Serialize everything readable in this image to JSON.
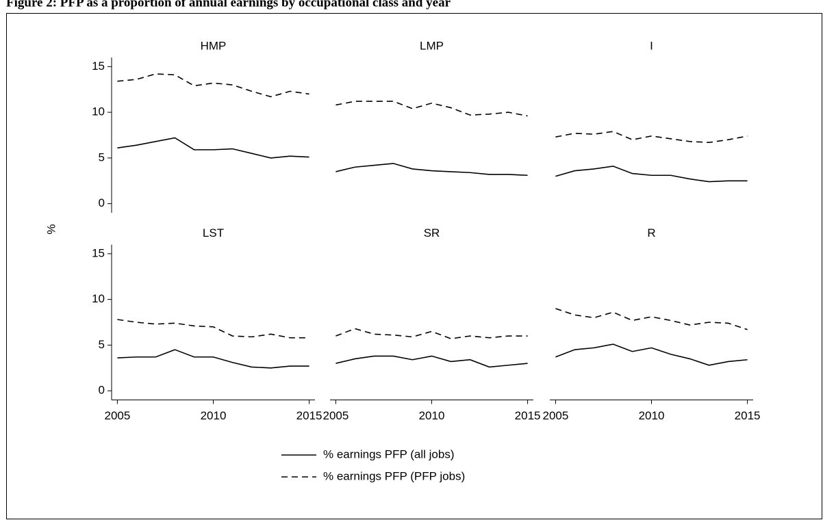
{
  "chart_data": {
    "type": "line",
    "title": "Figure 2: PFP as a proportion of annual earnings by occupational class and year",
    "ylabel": "%",
    "x": [
      2005,
      2006,
      2007,
      2008,
      2009,
      2010,
      2011,
      2012,
      2013,
      2014,
      2015
    ],
    "xlim": [
      2004.7,
      2015.3
    ],
    "xticks": [
      2005,
      2010,
      2015
    ],
    "ylim": [
      -1,
      16
    ],
    "yticks": [
      0,
      5,
      10,
      15
    ],
    "series": [
      {
        "name": "% earnings PFP (all jobs)",
        "color": "#000000",
        "style": "solid"
      },
      {
        "name": "% earnings PFP (PFP jobs)",
        "color": "#000000",
        "style": "dashed"
      }
    ],
    "panels": [
      {
        "title": "HMP",
        "series": [
          {
            "values": [
              6.1,
              6.4,
              6.8,
              7.2,
              5.9,
              5.9,
              6.0,
              5.5,
              5.0,
              5.2,
              5.1
            ]
          },
          {
            "values": [
              13.4,
              13.6,
              14.2,
              14.1,
              12.9,
              13.2,
              13.0,
              12.3,
              11.7,
              12.3,
              12.0
            ]
          }
        ]
      },
      {
        "title": "LMP",
        "series": [
          {
            "values": [
              3.5,
              4.0,
              4.2,
              4.4,
              3.8,
              3.6,
              3.5,
              3.4,
              3.2,
              3.2,
              3.1
            ]
          },
          {
            "values": [
              10.8,
              11.2,
              11.2,
              11.2,
              10.4,
              11.0,
              10.5,
              9.7,
              9.8,
              10.0,
              9.6
            ]
          }
        ]
      },
      {
        "title": "I",
        "series": [
          {
            "values": [
              3.0,
              3.6,
              3.8,
              4.1,
              3.3,
              3.1,
              3.1,
              2.7,
              2.4,
              2.5,
              2.5
            ]
          },
          {
            "values": [
              7.3,
              7.7,
              7.6,
              7.9,
              7.0,
              7.4,
              7.1,
              6.8,
              6.7,
              7.0,
              7.4
            ]
          }
        ]
      },
      {
        "title": "LST",
        "series": [
          {
            "values": [
              3.6,
              3.7,
              3.7,
              4.5,
              3.7,
              3.7,
              3.1,
              2.6,
              2.5,
              2.7,
              2.7
            ]
          },
          {
            "values": [
              7.8,
              7.5,
              7.3,
              7.4,
              7.1,
              7.0,
              6.0,
              5.9,
              6.2,
              5.8,
              5.8
            ]
          }
        ]
      },
      {
        "title": "SR",
        "series": [
          {
            "values": [
              3.0,
              3.5,
              3.8,
              3.8,
              3.4,
              3.8,
              3.2,
              3.4,
              2.6,
              2.8,
              3.0
            ]
          },
          {
            "values": [
              6.0,
              6.8,
              6.2,
              6.1,
              5.9,
              6.5,
              5.7,
              6.0,
              5.8,
              6.0,
              6.0
            ]
          }
        ]
      },
      {
        "title": "R",
        "series": [
          {
            "values": [
              3.7,
              4.5,
              4.7,
              5.1,
              4.3,
              4.7,
              4.0,
              3.5,
              2.8,
              3.2,
              3.4
            ]
          },
          {
            "values": [
              9.0,
              8.3,
              8.0,
              8.6,
              7.7,
              8.1,
              7.7,
              7.2,
              7.5,
              7.4,
              6.7
            ]
          }
        ]
      }
    ]
  }
}
